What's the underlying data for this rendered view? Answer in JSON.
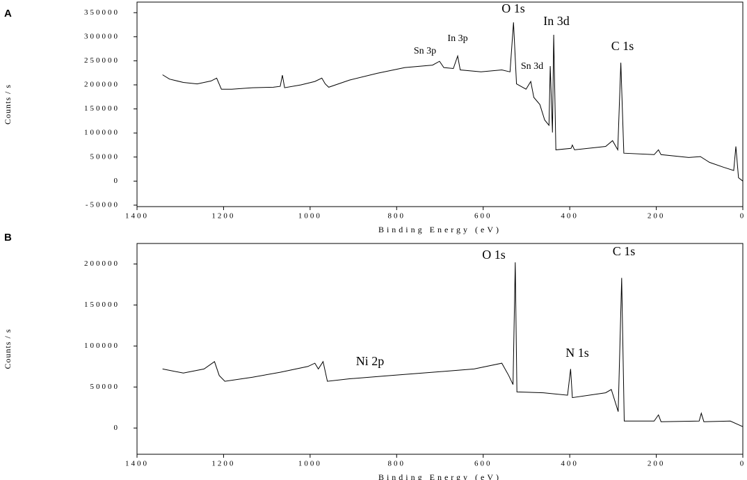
{
  "chart_data": [
    {
      "type": "line",
      "panel_label": "A",
      "xlabel": "Binding Energy (eV)",
      "ylabel": "Counts / s",
      "xlim": [
        1400,
        0
      ],
      "xticks": [
        1400,
        1200,
        1000,
        800,
        600,
        400,
        200,
        0
      ],
      "ylim": [
        -53000,
        372000
      ],
      "yticks": [
        -50000,
        0,
        50000,
        100000,
        150000,
        200000,
        250000,
        300000,
        350000
      ],
      "color": "#000000",
      "annotations": [
        "O 1s",
        "In 3d",
        "Sn 3p",
        "In 3p",
        "Sn 3d",
        "C 1s"
      ],
      "x": [
        1341,
        1325,
        1293,
        1261,
        1229,
        1216,
        1205,
        1181,
        1133,
        1085,
        1069,
        1064,
        1059,
        1021,
        989,
        973,
        965,
        957,
        909,
        845,
        781,
        717,
        701,
        691,
        669,
        659,
        653,
        605,
        557,
        538,
        530,
        523,
        501,
        490,
        483,
        469,
        458,
        448,
        445,
        440,
        437,
        432,
        397,
        394,
        389,
        317,
        301,
        289,
        282,
        275,
        205,
        195,
        189,
        125,
        98,
        77,
        45,
        21,
        16,
        10,
        0
      ],
      "values": [
        221000,
        212000,
        205000,
        202000,
        208000,
        214000,
        191000,
        191000,
        194000,
        195000,
        197000,
        220000,
        194000,
        200000,
        207000,
        214000,
        202000,
        195000,
        210000,
        224000,
        236000,
        241000,
        249000,
        236000,
        234000,
        260000,
        231000,
        227000,
        231000,
        227000,
        330000,
        202000,
        191000,
        207000,
        174000,
        159000,
        127000,
        116000,
        239000,
        101000,
        304000,
        65000,
        68000,
        75000,
        65000,
        72000,
        84000,
        65000,
        246000,
        58000,
        55000,
        65000,
        55000,
        49000,
        51000,
        39000,
        29000,
        22000,
        72000,
        7000,
        0
      ]
    },
    {
      "type": "line",
      "panel_label": "B",
      "xlabel": "Binding Energy (eV)",
      "ylabel": "Counts / s",
      "xlim": [
        1400,
        0
      ],
      "xticks": [
        1400,
        1200,
        1000,
        800,
        600,
        400,
        200,
        0
      ],
      "ylim": [
        -32000,
        225000
      ],
      "yticks": [
        0,
        50000,
        100000,
        150000,
        200000
      ],
      "color": "#000000",
      "annotations": [
        "O 1s",
        "C 1s",
        "N 1s",
        "Ni 2p"
      ],
      "x": [
        1341,
        1293,
        1245,
        1221,
        1210,
        1197,
        1133,
        1069,
        1005,
        989,
        981,
        970,
        960,
        909,
        813,
        717,
        621,
        557,
        541,
        531,
        526,
        522,
        461,
        405,
        398,
        394,
        317,
        304,
        288,
        280,
        274,
        205,
        195,
        189,
        101,
        96,
        90,
        29,
        0
      ],
      "values": [
        72000,
        67000,
        72000,
        81000,
        64000,
        57000,
        62000,
        68000,
        75000,
        79000,
        72000,
        81000,
        57000,
        60000,
        64000,
        68000,
        72000,
        79000,
        64000,
        53000,
        202000,
        44000,
        43000,
        40000,
        72000,
        37000,
        43000,
        47000,
        20000,
        183000,
        8500,
        8500,
        16000,
        7700,
        8500,
        18000,
        7700,
        8500,
        1700
      ]
    }
  ]
}
